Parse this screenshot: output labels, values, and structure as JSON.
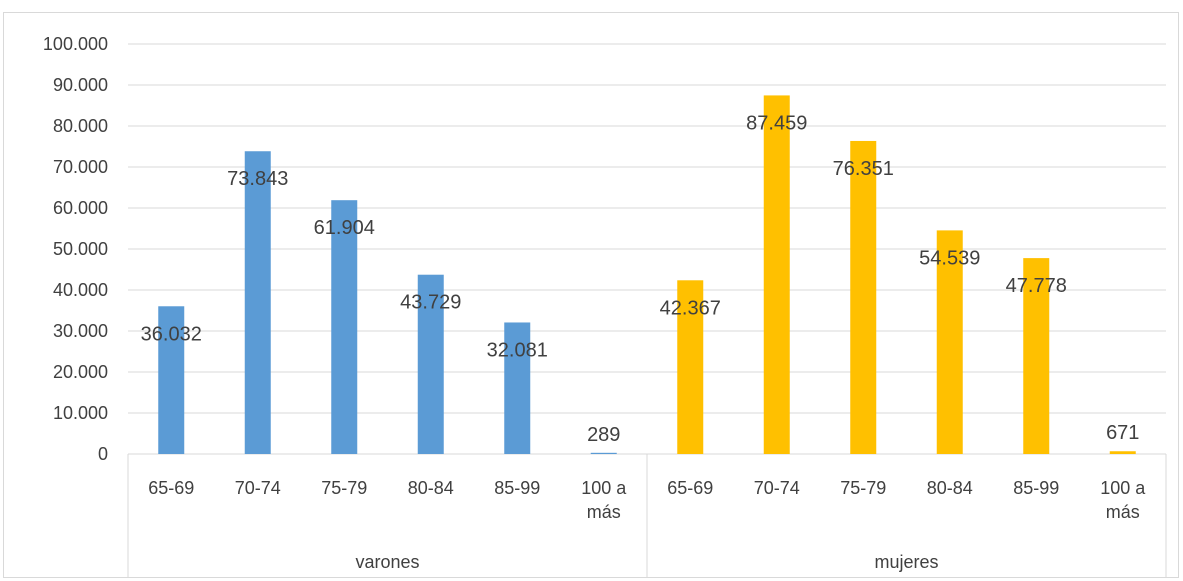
{
  "chart_data": {
    "type": "bar",
    "groups": [
      "varones",
      "mujeres"
    ],
    "categories": [
      "65-69",
      "70-74",
      "75-79",
      "80-84",
      "85-99",
      "100 a más"
    ],
    "series": [
      {
        "group": "varones",
        "color": "#5b9bd5",
        "values": [
          36032,
          73843,
          61904,
          43729,
          32081,
          289
        ]
      },
      {
        "group": "mujeres",
        "color": "#ffc000",
        "values": [
          42367,
          87459,
          76351,
          54539,
          47778,
          671
        ]
      }
    ],
    "data_labels": {
      "varones": [
        "36.032",
        "73.843",
        "61.904",
        "43.729",
        "32.081",
        "289"
      ],
      "mujeres": [
        "42.367",
        "87.459",
        "76.351",
        "54.539",
        "47.778",
        "671"
      ]
    },
    "ylim": [
      0,
      100000
    ],
    "yticks": [
      0,
      10000,
      20000,
      30000,
      40000,
      50000,
      60000,
      70000,
      80000,
      90000,
      100000
    ],
    "ytick_labels": [
      "0",
      "10.000",
      "20.000",
      "30.000",
      "40.000",
      "50.000",
      "60.000",
      "70.000",
      "80.000",
      "90.000",
      "100.000"
    ],
    "grid": true,
    "gridline_color": "#d9d9d9",
    "title": "",
    "xlabel": "",
    "ylabel": ""
  }
}
